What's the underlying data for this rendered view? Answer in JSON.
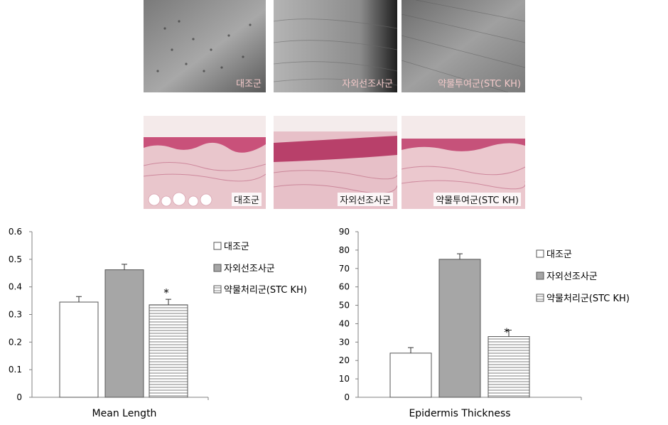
{
  "panels": {
    "wrinkle": [
      "대조군",
      "자외선조사군",
      "약물투여군(STC KH)"
    ],
    "histology": [
      "대조군",
      "자외선조사군",
      "약물투여군(STC KH)"
    ]
  },
  "chart_data": [
    {
      "type": "bar",
      "title": "",
      "xlabel": "Mean Length",
      "ylabel": "",
      "ylim": [
        0,
        0.6
      ],
      "yticks": [
        "0",
        "0.1",
        "0.2",
        "0.3",
        "0.4",
        "0.5",
        "0.6"
      ],
      "grid": false,
      "legend_position": "right",
      "series": [
        {
          "name": "대조군",
          "value": 0.345,
          "error": 0.02,
          "fill": "#ffffff",
          "pattern": "solid",
          "annotation": ""
        },
        {
          "name": "자외선조사군",
          "value": 0.462,
          "error": 0.02,
          "fill": "#a6a6a6",
          "pattern": "solid",
          "annotation": ""
        },
        {
          "name": "약물처리군(STC KH)",
          "value": 0.335,
          "error": 0.02,
          "fill": "#bfbfbf",
          "pattern": "horizontal-stripes",
          "annotation": "*"
        }
      ]
    },
    {
      "type": "bar",
      "title": "",
      "xlabel": "Epidermis Thickness",
      "ylabel": "",
      "ylim": [
        0,
        90
      ],
      "yticks": [
        "0",
        "10",
        "20",
        "30",
        "40",
        "50",
        "60",
        "70",
        "80",
        "90"
      ],
      "grid": false,
      "legend_position": "right",
      "series": [
        {
          "name": "대조군",
          "value": 24,
          "error": 3,
          "fill": "#ffffff",
          "pattern": "solid",
          "annotation": ""
        },
        {
          "name": "자외선조사군",
          "value": 75,
          "error": 3,
          "fill": "#a6a6a6",
          "pattern": "solid",
          "annotation": ""
        },
        {
          "name": "약물처리군(STC KH)",
          "value": 33,
          "error": 3.5,
          "fill": "#bfbfbf",
          "pattern": "horizontal-stripes",
          "annotation": "*"
        }
      ]
    }
  ]
}
